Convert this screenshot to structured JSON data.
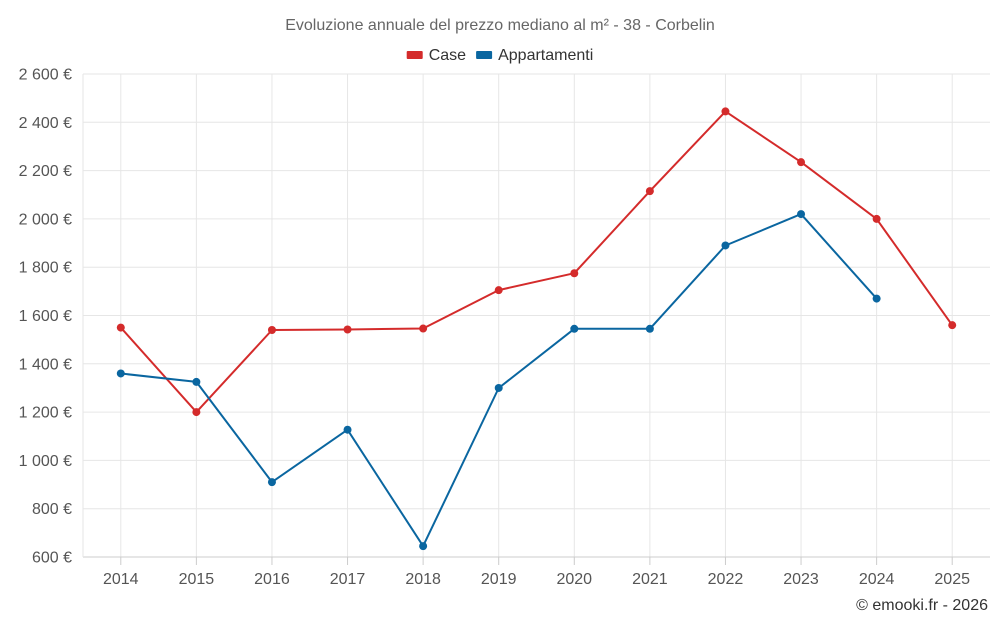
{
  "chart_data": {
    "type": "line",
    "title": "Evoluzione annuale del prezzo mediano al m² - 38 - Corbelin",
    "categories": [
      "2014",
      "2015",
      "2016",
      "2017",
      "2018",
      "2019",
      "2020",
      "2021",
      "2022",
      "2023",
      "2024",
      "2025"
    ],
    "series": [
      {
        "name": "Case",
        "color": "#d42b2b",
        "values": [
          1550,
          1200,
          1540,
          1542,
          1546,
          1705,
          1775,
          2115,
          2445,
          2235,
          2000,
          1560
        ]
      },
      {
        "name": "Appartamenti",
        "color": "#0a66a0",
        "values": [
          1360,
          1325,
          910,
          1127,
          645,
          1300,
          1545,
          1545,
          1890,
          2020,
          1670,
          null
        ]
      }
    ],
    "ylim": [
      600,
      2600
    ],
    "yticks": [
      600,
      800,
      1000,
      1200,
      1400,
      1600,
      1800,
      2000,
      2200,
      2400,
      2600
    ],
    "ytick_labels": [
      "600 €",
      "800 €",
      "1 000 €",
      "1 200 €",
      "1 400 €",
      "1 600 €",
      "1 800 €",
      "2 000 €",
      "2 200 €",
      "2 400 €",
      "2 600 €"
    ],
    "xlabel": "",
    "ylabel": "",
    "grid": true,
    "legend_position": "top-center"
  },
  "credit": "© emooki.fr - 2026"
}
